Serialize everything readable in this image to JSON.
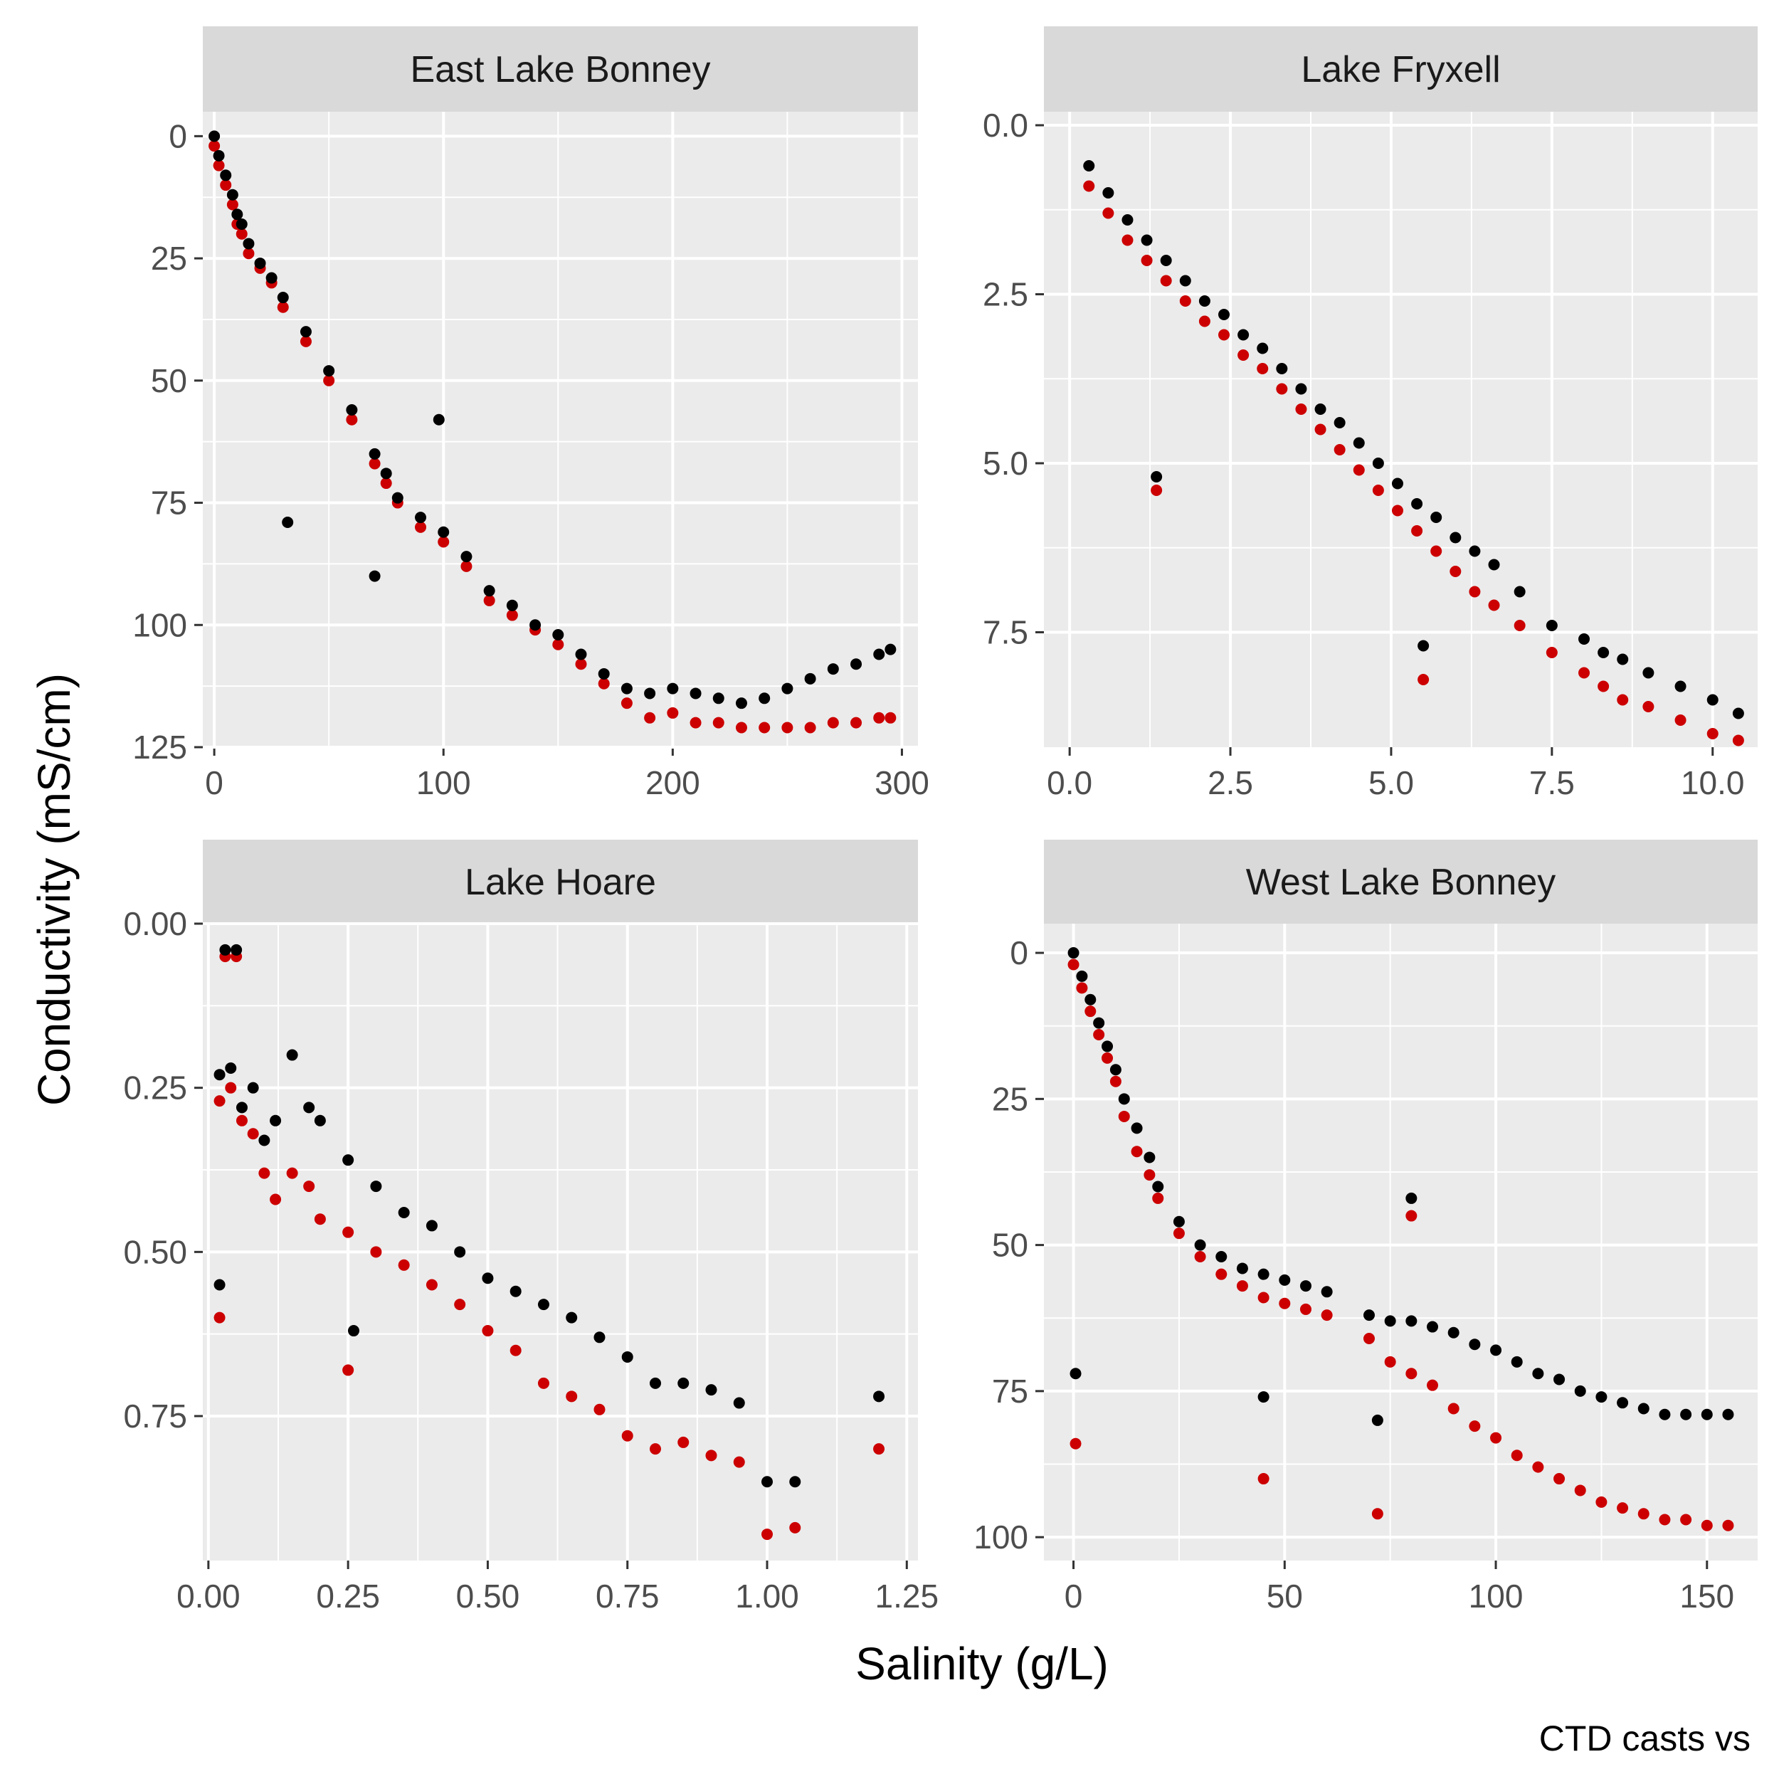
{
  "figure": {
    "xlabel": "Salinity (g/L)",
    "ylabel": "Conductivity (mS/cm)",
    "caption": "CTD casts vs"
  },
  "colors": {
    "panel_bg": "#ebebeb",
    "strip_bg": "#d9d9d9",
    "grid": "#ffffff",
    "point_black": "#000000",
    "point_red": "#cc0000"
  },
  "chart_data": [
    {
      "type": "scatter",
      "title": "East Lake Bonney",
      "xlim": [
        -5,
        307
      ],
      "ylim": [
        -5,
        125
      ],
      "y_reversed": true,
      "xticks": [
        0,
        100,
        200,
        300
      ],
      "xtick_labels": [
        "0",
        "100",
        "200",
        "300"
      ],
      "yticks": [
        0,
        25,
        50,
        75,
        100,
        125
      ],
      "ytick_labels": [
        "0",
        "25",
        "50",
        "75",
        "100",
        "125"
      ],
      "series": [
        {
          "color_key": "point_red",
          "x": [
            0,
            2,
            5,
            8,
            10,
            12,
            15,
            20,
            25,
            30,
            40,
            50,
            60,
            70,
            75,
            80,
            90,
            100,
            110,
            120,
            130,
            140,
            150,
            160,
            170,
            180,
            190,
            200,
            210,
            220,
            230,
            240,
            250,
            260,
            270,
            280,
            290,
            295
          ],
          "y": [
            2,
            6,
            10,
            14,
            18,
            20,
            24,
            27,
            30,
            35,
            42,
            50,
            58,
            67,
            71,
            75,
            80,
            83,
            88,
            95,
            98,
            101,
            104,
            108,
            112,
            116,
            119,
            118,
            120,
            120,
            121,
            121,
            121,
            121,
            120,
            120,
            119,
            119
          ]
        },
        {
          "color_key": "point_black",
          "x": [
            0,
            2,
            5,
            8,
            10,
            12,
            15,
            20,
            25,
            30,
            40,
            50,
            60,
            70,
            75,
            80,
            90,
            100,
            110,
            120,
            130,
            140,
            150,
            160,
            170,
            180,
            190,
            200,
            210,
            220,
            230,
            240,
            250,
            260,
            270,
            280,
            290,
            295,
            32,
            98,
            70
          ],
          "y": [
            0,
            4,
            8,
            12,
            16,
            18,
            22,
            26,
            29,
            33,
            40,
            48,
            56,
            65,
            69,
            74,
            78,
            81,
            86,
            93,
            96,
            100,
            102,
            106,
            110,
            113,
            114,
            113,
            114,
            115,
            116,
            115,
            113,
            111,
            109,
            108,
            106,
            105,
            79,
            58,
            90
          ]
        }
      ]
    },
    {
      "type": "scatter",
      "title": "Lake Fryxell",
      "xlim": [
        -0.4,
        10.7
      ],
      "ylim": [
        -0.2,
        9.2
      ],
      "y_reversed": true,
      "xticks": [
        0,
        2.5,
        5,
        7.5,
        10
      ],
      "xtick_labels": [
        "0.0",
        "2.5",
        "5.0",
        "7.5",
        "10.0"
      ],
      "yticks": [
        0,
        2.5,
        5,
        7.5
      ],
      "ytick_labels": [
        "0.0",
        "2.5",
        "5.0",
        "7.5"
      ],
      "series": [
        {
          "color_key": "point_red",
          "x": [
            0.3,
            0.6,
            0.9,
            1.2,
            1.5,
            1.8,
            2.1,
            2.4,
            2.7,
            3.0,
            3.3,
            3.6,
            3.9,
            4.2,
            4.5,
            4.8,
            5.1,
            5.4,
            5.7,
            6.0,
            6.3,
            6.6,
            7.0,
            7.5,
            8.0,
            8.3,
            8.6,
            9.0,
            9.5,
            10.0,
            10.4,
            1.35,
            5.5
          ],
          "y": [
            0.9,
            1.3,
            1.7,
            2.0,
            2.3,
            2.6,
            2.9,
            3.1,
            3.4,
            3.6,
            3.9,
            4.2,
            4.5,
            4.8,
            5.1,
            5.4,
            5.7,
            6.0,
            6.3,
            6.6,
            6.9,
            7.1,
            7.4,
            7.8,
            8.1,
            8.3,
            8.5,
            8.6,
            8.8,
            9.0,
            9.1,
            5.4,
            8.2
          ]
        },
        {
          "color_key": "point_black",
          "x": [
            0.3,
            0.6,
            0.9,
            1.2,
            1.5,
            1.8,
            2.1,
            2.4,
            2.7,
            3.0,
            3.3,
            3.6,
            3.9,
            4.2,
            4.5,
            4.8,
            5.1,
            5.4,
            5.7,
            6.0,
            6.3,
            6.6,
            7.0,
            7.5,
            8.0,
            8.3,
            8.6,
            9.0,
            9.5,
            10.0,
            10.4,
            1.35,
            5.5
          ],
          "y": [
            0.6,
            1.0,
            1.4,
            1.7,
            2.0,
            2.3,
            2.6,
            2.8,
            3.1,
            3.3,
            3.6,
            3.9,
            4.2,
            4.4,
            4.7,
            5.0,
            5.3,
            5.6,
            5.8,
            6.1,
            6.3,
            6.5,
            6.9,
            7.4,
            7.6,
            7.8,
            7.9,
            8.1,
            8.3,
            8.5,
            8.7,
            5.2,
            7.7
          ]
        }
      ]
    },
    {
      "type": "scatter",
      "title": "Lake Hoare",
      "xlim": [
        -0.01,
        1.27
      ],
      "ylim": [
        0,
        0.97
      ],
      "y_reversed": true,
      "xticks": [
        0,
        0.25,
        0.5,
        0.75,
        1.0,
        1.25
      ],
      "xtick_labels": [
        "0.00",
        "0.25",
        "0.50",
        "0.75",
        "1.00",
        "1.25"
      ],
      "yticks": [
        0,
        0.25,
        0.5,
        0.75
      ],
      "ytick_labels": [
        "0.00",
        "0.25",
        "0.50",
        "0.75"
      ],
      "series": [
        {
          "color_key": "point_red",
          "x": [
            0.02,
            0.04,
            0.06,
            0.08,
            0.1,
            0.12,
            0.15,
            0.18,
            0.2,
            0.25,
            0.3,
            0.35,
            0.4,
            0.45,
            0.5,
            0.55,
            0.6,
            0.65,
            0.7,
            0.75,
            0.8,
            0.85,
            0.9,
            0.95,
            1.0,
            1.05,
            1.2,
            0.03,
            0.05,
            0.25,
            0.02
          ],
          "y": [
            0.27,
            0.25,
            0.3,
            0.32,
            0.38,
            0.42,
            0.38,
            0.4,
            0.45,
            0.47,
            0.5,
            0.52,
            0.55,
            0.58,
            0.62,
            0.65,
            0.7,
            0.72,
            0.74,
            0.78,
            0.8,
            0.79,
            0.81,
            0.82,
            0.93,
            0.92,
            0.8,
            0.05,
            0.05,
            0.68,
            0.6
          ]
        },
        {
          "color_key": "point_black",
          "x": [
            0.02,
            0.04,
            0.06,
            0.08,
            0.1,
            0.12,
            0.15,
            0.18,
            0.2,
            0.25,
            0.3,
            0.35,
            0.4,
            0.45,
            0.5,
            0.55,
            0.6,
            0.65,
            0.7,
            0.75,
            0.8,
            0.85,
            0.9,
            0.95,
            1.0,
            1.05,
            1.2,
            0.03,
            0.05,
            0.26,
            0.02
          ],
          "y": [
            0.23,
            0.22,
            0.28,
            0.25,
            0.33,
            0.3,
            0.2,
            0.28,
            0.3,
            0.36,
            0.4,
            0.44,
            0.46,
            0.5,
            0.54,
            0.56,
            0.58,
            0.6,
            0.63,
            0.66,
            0.7,
            0.7,
            0.71,
            0.73,
            0.85,
            0.85,
            0.72,
            0.04,
            0.04,
            0.62,
            0.55
          ]
        }
      ]
    },
    {
      "type": "scatter",
      "title": "West Lake Bonney",
      "xlim": [
        -7,
        162
      ],
      "ylim": [
        -5,
        104
      ],
      "y_reversed": true,
      "xticks": [
        0,
        50,
        100,
        150
      ],
      "xtick_labels": [
        "0",
        "50",
        "100",
        "150"
      ],
      "yticks": [
        0,
        25,
        50,
        75,
        100
      ],
      "ytick_labels": [
        "0",
        "25",
        "50",
        "75",
        "100"
      ],
      "series": [
        {
          "color_key": "point_red",
          "x": [
            0,
            2,
            4,
            6,
            8,
            10,
            12,
            15,
            18,
            20,
            25,
            30,
            35,
            40,
            45,
            50,
            55,
            60,
            70,
            75,
            80,
            85,
            90,
            95,
            100,
            105,
            110,
            115,
            120,
            125,
            130,
            135,
            140,
            145,
            150,
            155,
            0.5,
            45,
            72,
            80
          ],
          "y": [
            2,
            6,
            10,
            14,
            18,
            22,
            28,
            34,
            38,
            42,
            48,
            52,
            55,
            57,
            59,
            60,
            61,
            62,
            66,
            70,
            72,
            74,
            78,
            81,
            83,
            86,
            88,
            90,
            92,
            94,
            95,
            96,
            97,
            97,
            98,
            98,
            84,
            90,
            96,
            45
          ]
        },
        {
          "color_key": "point_black",
          "x": [
            0,
            2,
            4,
            6,
            8,
            10,
            12,
            15,
            18,
            20,
            25,
            30,
            35,
            40,
            45,
            50,
            55,
            60,
            70,
            75,
            80,
            85,
            90,
            95,
            100,
            105,
            110,
            115,
            120,
            125,
            130,
            135,
            140,
            145,
            150,
            155,
            0.5,
            45,
            72,
            80
          ],
          "y": [
            0,
            4,
            8,
            12,
            16,
            20,
            25,
            30,
            35,
            40,
            46,
            50,
            52,
            54,
            55,
            56,
            57,
            58,
            62,
            63,
            63,
            64,
            65,
            67,
            68,
            70,
            72,
            73,
            75,
            76,
            77,
            78,
            79,
            79,
            79,
            79,
            72,
            76,
            80,
            42
          ]
        }
      ]
    }
  ]
}
